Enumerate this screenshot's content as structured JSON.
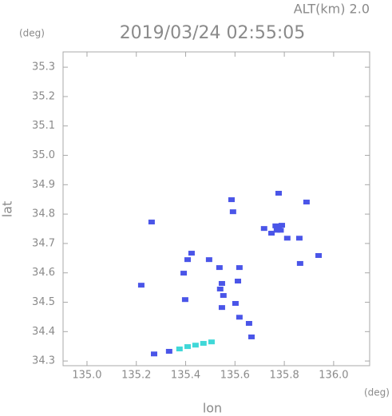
{
  "chart_data": {
    "type": "scatter",
    "title": "2019/03/24 02:55:05",
    "subtitle": "ALT(km) 2.0",
    "x_label": "lon",
    "x_unit": "(deg)",
    "y_label": "lat",
    "y_unit": "(deg)",
    "xlim": [
      134.903,
      136.146
    ],
    "ylim": [
      34.284,
      35.352
    ],
    "xticks": [
      {
        "value": 135.0,
        "label": "135.0"
      },
      135.2,
      135.4,
      135.6,
      135.8,
      {
        "value": 136.0,
        "label": "136.0"
      }
    ],
    "yticks": [
      {
        "value": 34.3,
        "label": "34.3"
      },
      34.4,
      34.5,
      34.6,
      34.7,
      34.8,
      34.9,
      {
        "value": 35.0,
        "label": "35.0"
      },
      35.1,
      35.2,
      35.3
    ],
    "grid": false,
    "series": [
      {
        "color": "#4a55e8",
        "x": [
          135.777,
          135.777,
          135.77,
          135.785,
          135.765,
          135.79,
          135.748,
          135.718,
          135.812,
          135.861,
          135.89,
          135.939,
          135.864,
          135.586,
          135.592,
          135.262,
          135.22,
          135.408,
          135.424,
          135.495,
          135.537,
          135.547,
          135.553,
          135.547,
          135.54,
          135.618,
          135.612,
          135.602,
          135.618,
          135.657,
          135.398,
          135.392,
          135.667,
          135.272,
          135.333
        ],
        "y": [
          34.871,
          34.754,
          34.745,
          34.745,
          34.76,
          34.762,
          34.735,
          34.751,
          34.718,
          34.718,
          34.841,
          34.659,
          34.632,
          34.849,
          34.808,
          34.773,
          34.558,
          34.645,
          34.667,
          34.645,
          34.618,
          34.564,
          34.523,
          34.482,
          34.545,
          34.618,
          34.572,
          34.496,
          34.449,
          34.428,
          34.509,
          34.599,
          34.382,
          34.324,
          34.333
        ]
      },
      {
        "color": "#40d8d8",
        "x": [
          135.375,
          135.408,
          135.44,
          135.472,
          135.505
        ],
        "y": [
          34.341,
          34.349,
          34.354,
          34.36,
          34.365
        ]
      }
    ]
  }
}
